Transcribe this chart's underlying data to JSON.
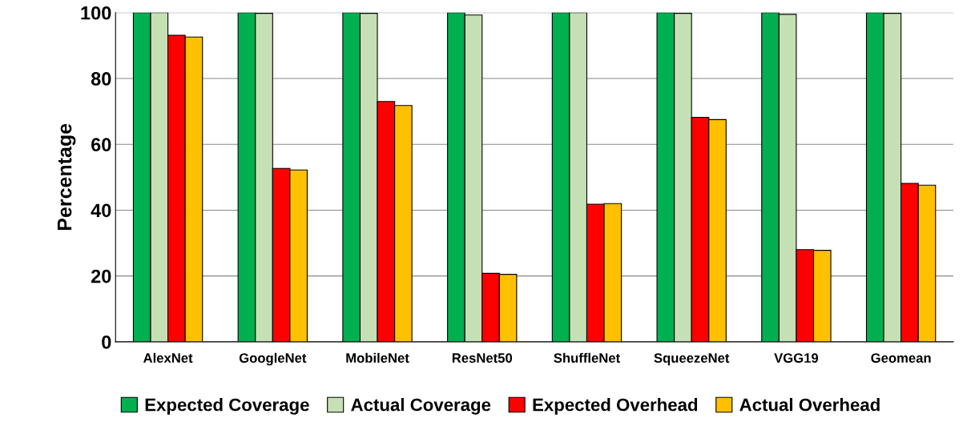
{
  "chart_data": {
    "type": "bar",
    "ylabel": "Percentage",
    "categories": [
      "AlexNet",
      "GoogleNet",
      "MobileNet",
      "ResNet50",
      "ShuffleNet",
      "SqueezeNet",
      "VGG19",
      "Geomean"
    ],
    "series": [
      {
        "name": "Expected Coverage",
        "color": "#00b050",
        "values": [
          100,
          100,
          100,
          100,
          100,
          100,
          100,
          100
        ]
      },
      {
        "name": "Actual Coverage",
        "color": "#c5e0b4",
        "values": [
          100,
          99.8,
          99.8,
          99.3,
          100,
          99.8,
          99.5,
          99.8
        ]
      },
      {
        "name": "Expected Overhead",
        "color": "#ff0000",
        "values": [
          93.1,
          52.7,
          73,
          20.8,
          41.8,
          68.2,
          28,
          48.1
        ]
      },
      {
        "name": "Actual Overhead",
        "color": "#ffc000",
        "values": [
          92.6,
          52.2,
          71.8,
          20.5,
          42,
          67.5,
          27.8,
          47.6
        ]
      }
    ],
    "ylim": [
      0,
      100
    ],
    "yticks": [
      0,
      20,
      40,
      60,
      80,
      100
    ],
    "grid": "y",
    "legend": "bottom"
  }
}
